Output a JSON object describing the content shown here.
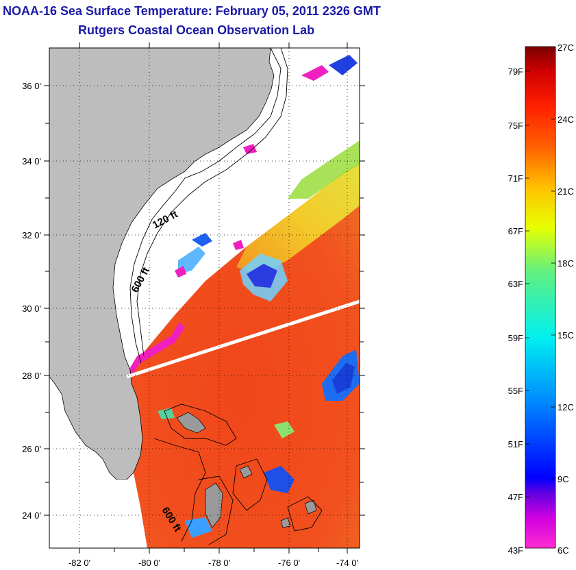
{
  "header": {
    "title": "NOAA-16 Sea Surface Temperature:  February 05, 2011 2326 GMT",
    "subtitle": "Rutgers Coastal Ocean Observation Lab"
  },
  "map": {
    "lat_ticks": [
      "36 0'",
      "34 0'",
      "32 0'",
      "30 0'",
      "28 0'",
      "26 0'",
      "24 0'"
    ],
    "lon_ticks": [
      "-82 0'",
      "-80 0'",
      "-78 0'",
      "-76 0'",
      "-74 0'"
    ],
    "contour_labels": [
      "120 ft",
      "600 ft",
      "600 ft"
    ]
  },
  "colorbar": {
    "fahrenheit": [
      "79F",
      "75F",
      "71F",
      "67F",
      "63F",
      "59F",
      "55F",
      "51F",
      "47F",
      "43F"
    ],
    "celsius": [
      "27C",
      "24C",
      "21C",
      "18C",
      "15C",
      "12C",
      "9C",
      "6C"
    ]
  },
  "colors": {
    "title": "#1a1aa6",
    "land": "#bdbdbd",
    "sst_warm": "#f04b1e",
    "sst_mid": "#f5c81e",
    "cold": "#2040e0",
    "very_cold": "#f020c0"
  }
}
